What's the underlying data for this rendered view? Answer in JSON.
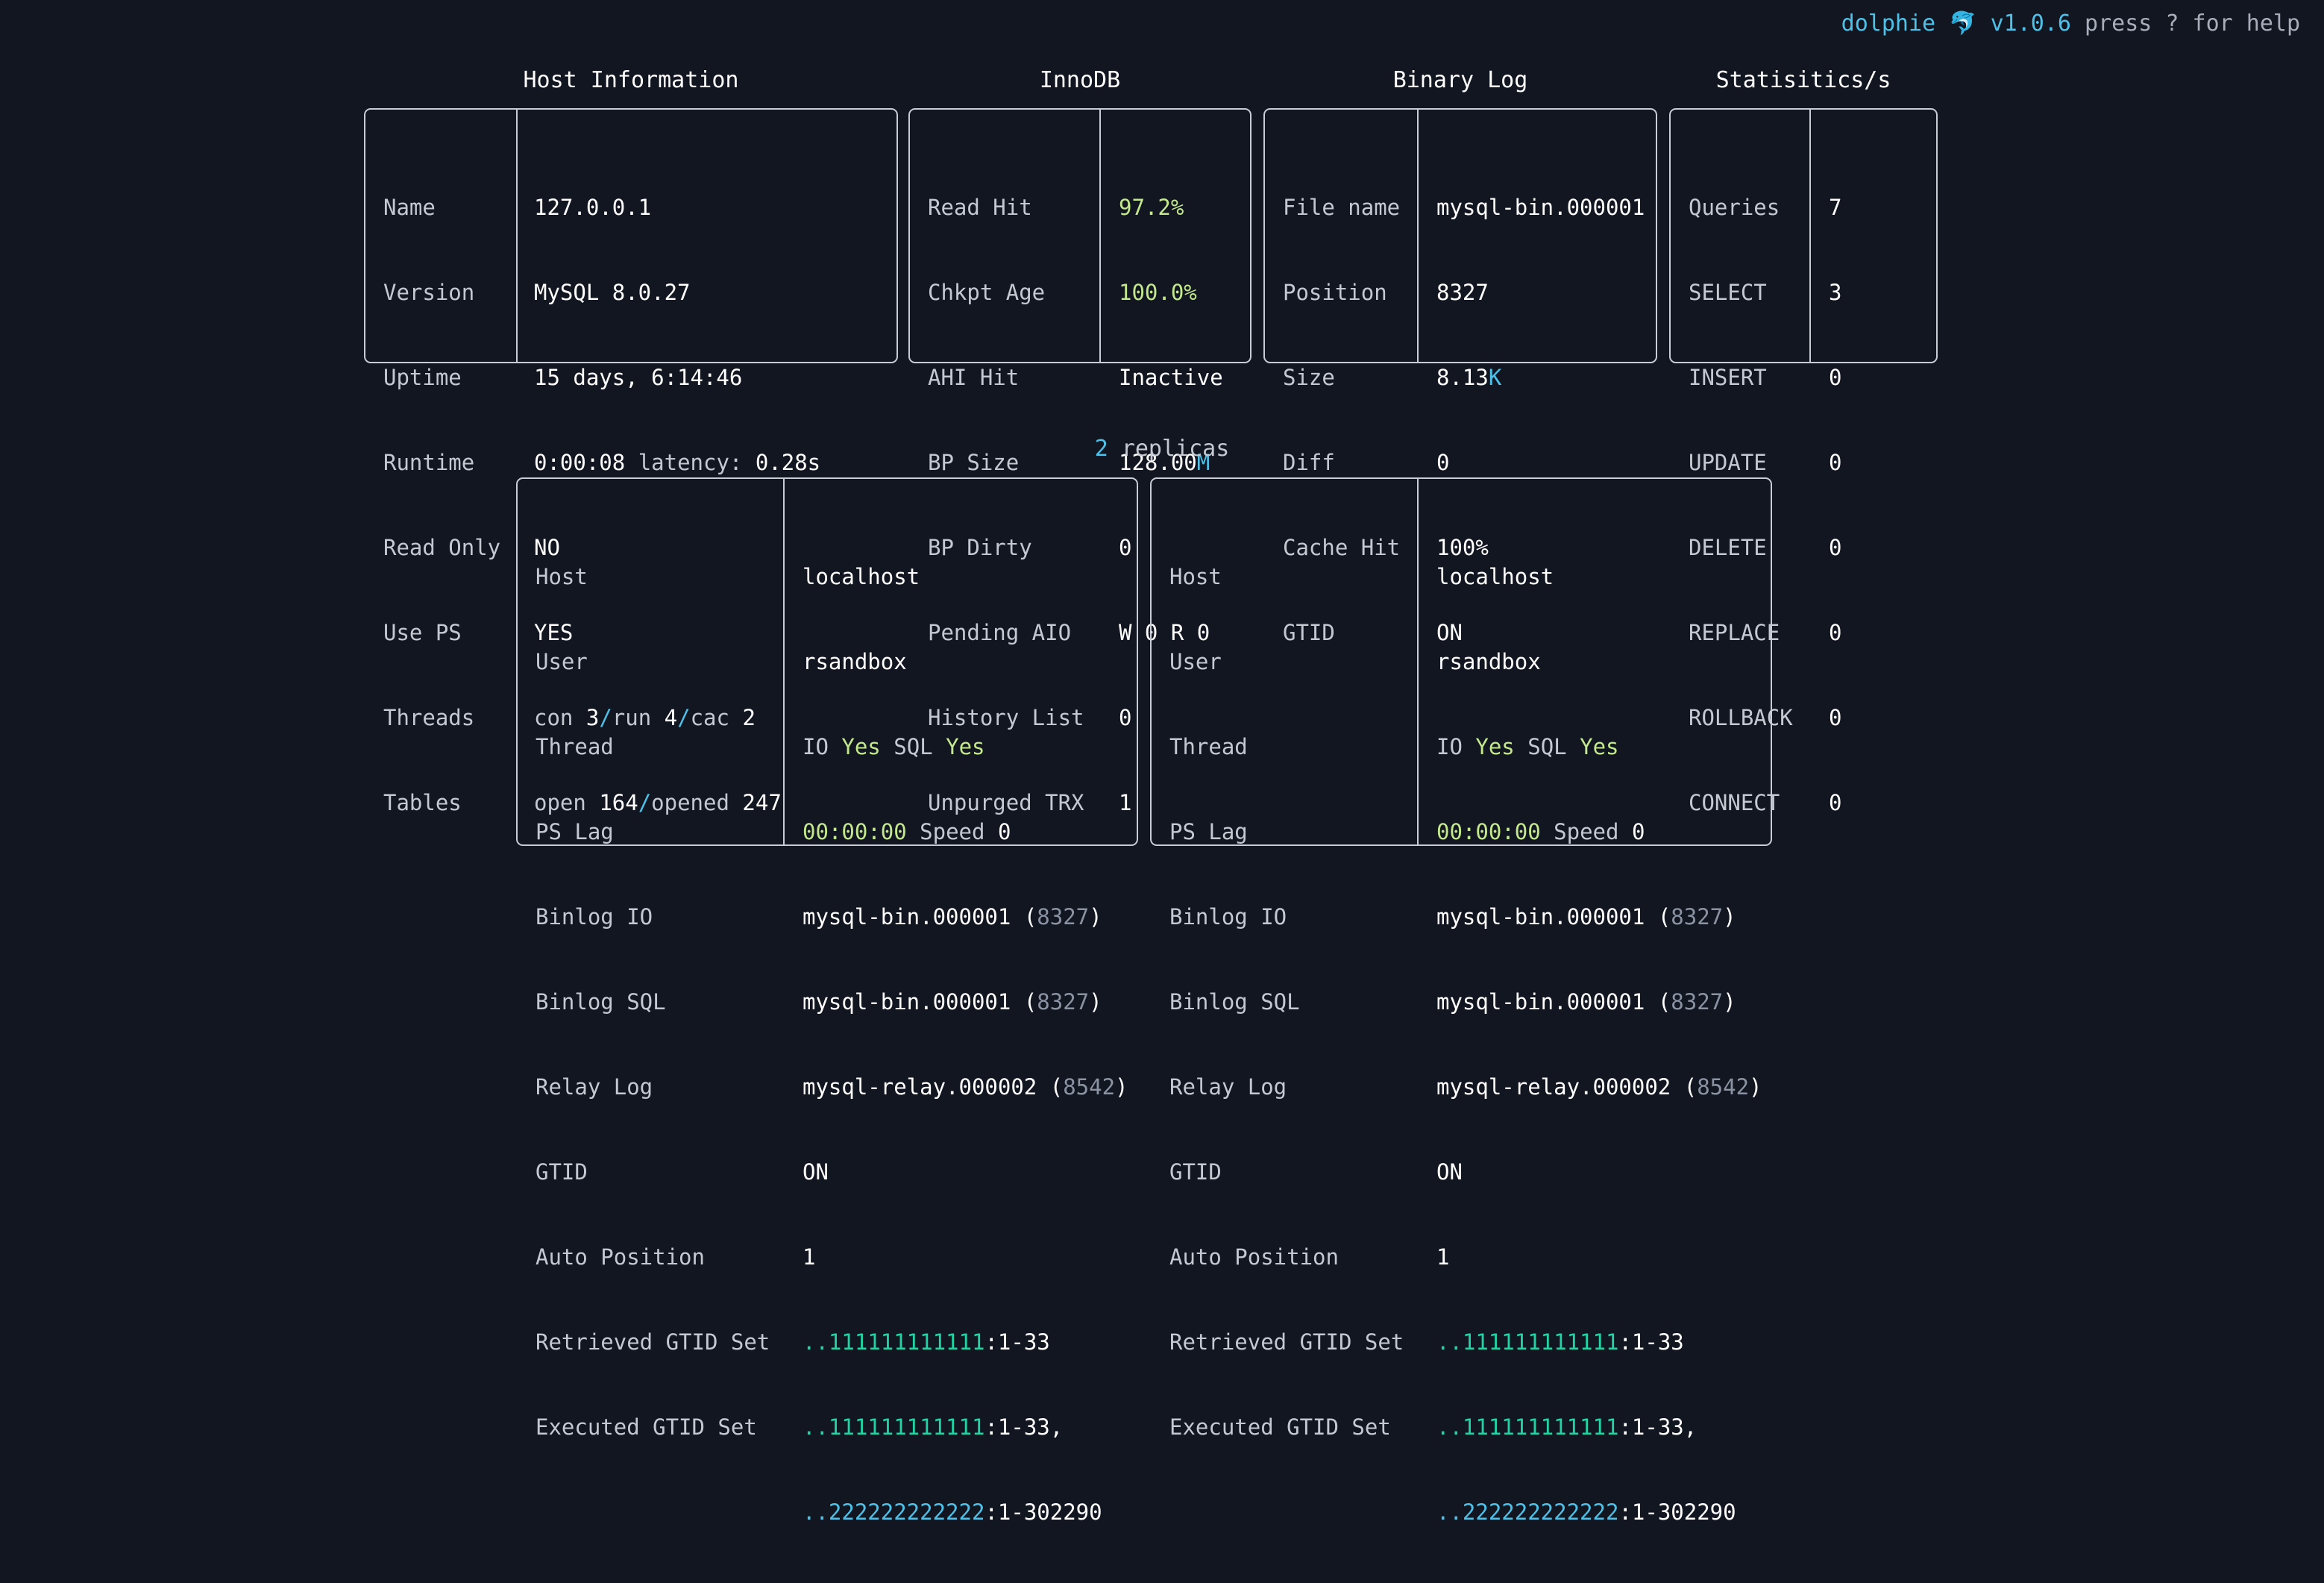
{
  "header": {
    "app_name": "dolphie",
    "dolphin_icon": "🐬",
    "version": "v1.0.6",
    "help_text": "press ? for help"
  },
  "host_info": {
    "title": "Host Information",
    "name_label": "Name",
    "name": "127.0.0.1",
    "version_label": "Version",
    "version": "MySQL 8.0.27",
    "uptime_label": "Uptime",
    "uptime": "15 days, 6:14:46",
    "runtime_label": "Runtime",
    "runtime": "0:00:08",
    "latency_label": "latency:",
    "latency": "0.28s",
    "read_only_label": "Read Only",
    "read_only": "NO",
    "use_ps_label": "Use PS",
    "use_ps": "YES",
    "threads_label": "Threads",
    "threads_con_label": "con",
    "threads_con": "3",
    "threads_run_label": "run",
    "threads_run": "4",
    "threads_cac_label": "cac",
    "threads_cac": "2",
    "tables_label": "Tables",
    "tables_open_label": "open",
    "tables_open": "164",
    "tables_opened_label": "opened",
    "tables_opened": "247"
  },
  "innodb": {
    "title": "InnoDB",
    "read_hit_label": "Read Hit",
    "read_hit": "97.2%",
    "chkpt_age_label": "Chkpt Age",
    "chkpt_age": "100.0%",
    "ahi_hit_label": "AHI Hit",
    "ahi_hit": "Inactive",
    "bp_size_label": "BP Size",
    "bp_size": "128.00",
    "bp_size_unit": "M",
    "bp_dirty_label": "BP Dirty",
    "bp_dirty": "0",
    "pending_aio_label": "Pending AIO",
    "pending_aio": "W 0 R 0",
    "history_list_label": "History List",
    "history_list": "0",
    "unpurged_trx_label": "Unpurged TRX",
    "unpurged_trx": "1"
  },
  "binary_log": {
    "title": "Binary Log",
    "file_name_label": "File name",
    "file_name": "mysql-bin.000001",
    "position_label": "Position",
    "position": "8327",
    "size_label": "Size",
    "size": "8.13",
    "size_unit": "K",
    "diff_label": "Diff",
    "diff": "0",
    "cache_hit_label": "Cache Hit",
    "cache_hit": "100%",
    "gtid_label": "GTID",
    "gtid": "ON"
  },
  "statistics": {
    "title": "Statisitics/s",
    "rows": [
      {
        "label": "Queries",
        "value": "7"
      },
      {
        "label": "SELECT",
        "value": "3"
      },
      {
        "label": "INSERT",
        "value": "0"
      },
      {
        "label": "UPDATE",
        "value": "0"
      },
      {
        "label": "DELETE",
        "value": "0"
      },
      {
        "label": "REPLACE",
        "value": "0"
      },
      {
        "label": "ROLLBACK",
        "value": "0"
      },
      {
        "label": "CONNECT",
        "value": "0"
      }
    ]
  },
  "replicas": {
    "count": "2",
    "label": "replicas",
    "items": [
      {
        "host_label": "Host",
        "host": "localhost",
        "user_label": "User",
        "user": "rsandbox",
        "thread_label": "Thread",
        "thread_io_label": "IO",
        "thread_io": "Yes",
        "thread_sql_label": "SQL",
        "thread_sql": "Yes",
        "ps_lag_label": "PS Lag",
        "ps_lag": "00:00:00",
        "speed_label": "Speed",
        "speed": "0",
        "binlog_io_label": "Binlog IO",
        "binlog_io_file": "mysql-bin.000001",
        "binlog_io_pos": "8327",
        "binlog_sql_label": "Binlog SQL",
        "binlog_sql_file": "mysql-bin.000001",
        "binlog_sql_pos": "8327",
        "relay_log_label": "Relay Log",
        "relay_log_file": "mysql-relay.000002",
        "relay_log_pos": "8542",
        "gtid_label": "GTID",
        "gtid": "ON",
        "auto_position_label": "Auto Position",
        "auto_position": "1",
        "retrieved_gtid_label": "Retrieved GTID Set",
        "retrieved_prefix": "..",
        "retrieved_uuid": "111111111111",
        "retrieved_range": ":1-33",
        "executed_gtid_label": "Executed GTID Set",
        "executed_prefix1": "..",
        "executed_uuid1": "111111111111",
        "executed_range1": ":1-33,",
        "executed_prefix2": "..",
        "executed_uuid2": "222222222222",
        "executed_range2": ":1-302290"
      },
      {
        "host_label": "Host",
        "host": "localhost",
        "user_label": "User",
        "user": "rsandbox",
        "thread_label": "Thread",
        "thread_io_label": "IO",
        "thread_io": "Yes",
        "thread_sql_label": "SQL",
        "thread_sql": "Yes",
        "ps_lag_label": "PS Lag",
        "ps_lag": "00:00:00",
        "speed_label": "Speed",
        "speed": "0",
        "binlog_io_label": "Binlog IO",
        "binlog_io_file": "mysql-bin.000001",
        "binlog_io_pos": "8327",
        "binlog_sql_label": "Binlog SQL",
        "binlog_sql_file": "mysql-bin.000001",
        "binlog_sql_pos": "8327",
        "relay_log_label": "Relay Log",
        "relay_log_file": "mysql-relay.000002",
        "relay_log_pos": "8542",
        "gtid_label": "GTID",
        "gtid": "ON",
        "auto_position_label": "Auto Position",
        "auto_position": "1",
        "retrieved_gtid_label": "Retrieved GTID Set",
        "retrieved_prefix": "..",
        "retrieved_uuid": "111111111111",
        "retrieved_range": ":1-33",
        "executed_gtid_label": "Executed GTID Set",
        "executed_prefix1": "..",
        "executed_uuid1": "111111111111",
        "executed_range1": ":1-33,",
        "executed_prefix2": "..",
        "executed_uuid2": "222222222222",
        "executed_range2": ":1-302290"
      }
    ]
  },
  "colors": {
    "background": "#121620",
    "accent_cyan": "#4fc1e9",
    "accent_green": "#c3e88d",
    "accent_teal": "#22d3a6",
    "muted_gray": "#8b93a3",
    "border": "#c8ccd4"
  }
}
